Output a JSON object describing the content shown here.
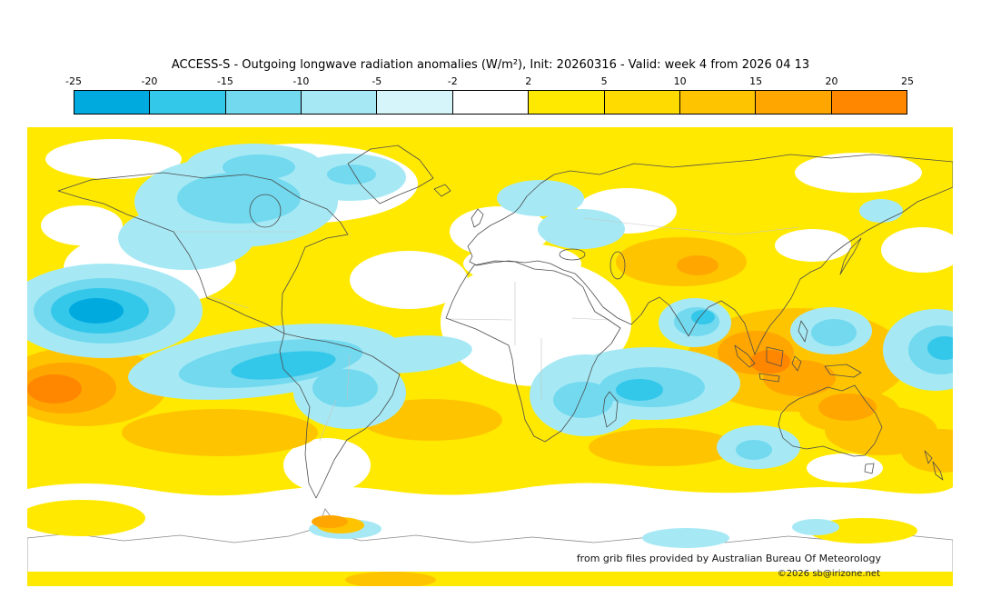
{
  "title": "ACCESS-S - Outgoing longwave radiation anomalies (W/m²), Init: 20260316 - Valid: week 4 from 2026 04 13",
  "colorbar": {
    "tick_labels": [
      "-25",
      "-20",
      "-15",
      "-10",
      "-5",
      "-2",
      "2",
      "5",
      "10",
      "15",
      "20",
      "25"
    ],
    "segment_colors": [
      "#00aadf",
      "#33c7ea",
      "#72d9ef",
      "#a6e9f5",
      "#d6f5fa",
      "#ffffff",
      "#ffe900",
      "#ffdb00",
      "#ffc400",
      "#ffa600",
      "#ff8700"
    ]
  },
  "footer": {
    "attribution": "from grib files provided by Australian Bureau Of Meteorology",
    "copyright": "©2026 sb@irizone.net"
  },
  "chart_data": {
    "type": "heatmap",
    "title": "ACCESS-S - Outgoing longwave radiation anomalies (W/m²), Init: 20260316 - Valid: week 4 from 2026 04 13",
    "model": "ACCESS-S",
    "variable": "Outgoing longwave radiation anomalies",
    "units": "W/m²",
    "init": "20260316",
    "valid": "week 4 from 2026 04 13",
    "projection": "equirectangular world map, 90N to 90S, 180W to 180E",
    "colorbar_levels": [
      -25,
      -20,
      -15,
      -10,
      -5,
      -2,
      2,
      5,
      10,
      15,
      20,
      25
    ],
    "colorbar_colors": [
      "#00aadf",
      "#33c7ea",
      "#72d9ef",
      "#a6e9f5",
      "#d6f5fa",
      "#ffffff",
      "#ffe900",
      "#ffdb00",
      "#ffc400",
      "#ffa600",
      "#ff8700"
    ],
    "legend_position": "top, horizontal",
    "major_anomalies": [
      {
        "region": "North-central Pacific",
        "sign": "negative",
        "approx_peak_wm2": -25
      },
      {
        "region": "Canada and northern North America",
        "sign": "negative",
        "approx_peak_wm2": -10
      },
      {
        "region": "Eastern tropical Pacific into northern South America / Amazon",
        "sign": "negative",
        "approx_peak_wm2": -18
      },
      {
        "region": "Equatorial Indian Ocean and East Africa",
        "sign": "negative",
        "approx_peak_wm2": -14
      },
      {
        "region": "Bay of Bengal / eastern India",
        "sign": "negative",
        "approx_peak_wm2": -15
      },
      {
        "region": "Philippine Sea and far western equatorial Pacific (date line)",
        "sign": "negative",
        "approx_peak_wm2": -15
      },
      {
        "region": "Subtropical South Pacific at far left edge",
        "sign": "positive",
        "approx_peak_wm2": 24
      },
      {
        "region": "Maritime Continent / Indonesia",
        "sign": "positive",
        "approx_peak_wm2": 24
      },
      {
        "region": "Northeastern Australia / Coral Sea",
        "sign": "positive",
        "approx_peak_wm2": 18
      },
      {
        "region": "Central Asia near Himalayas",
        "sign": "positive",
        "approx_peak_wm2": 17
      },
      {
        "region": "Most mid-latitude oceans and continents",
        "sign": "positive",
        "approx_peak_wm2": 6
      },
      {
        "region": "Africa interior, Europe, Antarctica interior",
        "sign": "neutral",
        "approx_peak_wm2": 0
      }
    ]
  }
}
